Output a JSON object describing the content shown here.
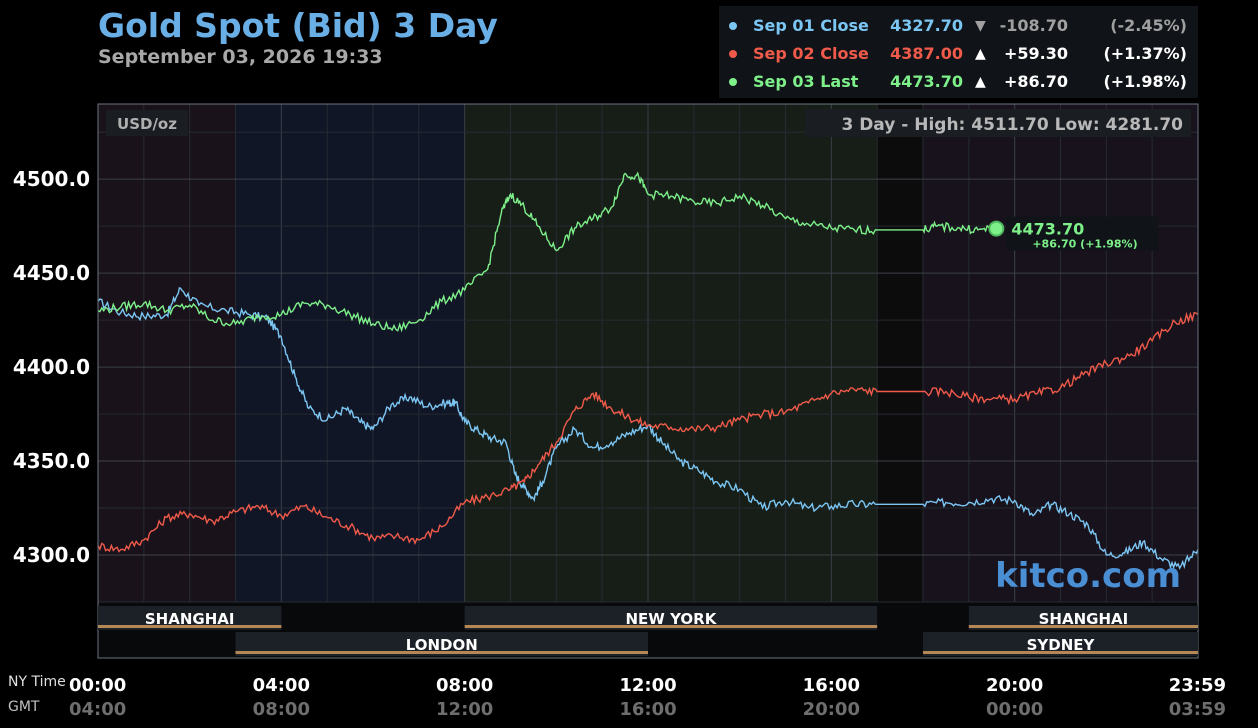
{
  "header": {
    "title": "Gold Spot (Bid) 3 Day",
    "subtitle": "September 03, 2026 19:33"
  },
  "legend": [
    {
      "name": "Sep 01 Close",
      "price": "4327.70",
      "arrow": "▼",
      "change": "-108.70",
      "pct": "(-2.45%)",
      "color": "#7cc6f4",
      "arrow_color": "#a0a0a0",
      "change_color": "#a0a0a0"
    },
    {
      "name": "Sep 02 Close",
      "price": "4387.00",
      "arrow": "▲",
      "change": "+59.30",
      "pct": "(+1.37%)",
      "color": "#ef5a4a",
      "arrow_color": "#ffffff",
      "change_color": "#ffffff"
    },
    {
      "name": "Sep 03 Last",
      "price": "4473.70",
      "arrow": "▲",
      "change": "+86.70",
      "pct": "(+1.98%)",
      "color": "#7ef08a",
      "arrow_color": "#ffffff",
      "change_color": "#ffffff"
    }
  ],
  "chart": {
    "unit": "USD/oz",
    "high_low": "3 Day - High: 4511.70  Low: 4281.70",
    "last_price": "4473.70",
    "last_change": "+86.70 (+1.98%)",
    "watermark": "kitco.com",
    "row_label_ny": "NY Time",
    "row_label_gmt": "GMT"
  },
  "chart_data": {
    "type": "line",
    "ylim": [
      4275,
      4540
    ],
    "xlim": [
      0,
      24
    ],
    "yticks": [
      {
        "value": 4300,
        "label": "4300.0"
      },
      {
        "value": 4350,
        "label": "4350.0"
      },
      {
        "value": 4400,
        "label": "4400.0"
      },
      {
        "value": 4450,
        "label": "4450.0"
      },
      {
        "value": 4500,
        "label": "4500.0"
      }
    ],
    "xticks": [
      {
        "value": 0,
        "label": "00:00",
        "gmt": "04:00"
      },
      {
        "value": 4,
        "label": "04:00",
        "gmt": "08:00"
      },
      {
        "value": 8,
        "label": "08:00",
        "gmt": "12:00"
      },
      {
        "value": 12,
        "label": "12:00",
        "gmt": "16:00"
      },
      {
        "value": 16,
        "label": "16:00",
        "gmt": "20:00"
      },
      {
        "value": 20,
        "label": "20:00",
        "gmt": "00:00"
      },
      {
        "value": 23.98,
        "label": "23:59",
        "gmt": "03:59"
      }
    ],
    "sessions": [
      {
        "name": "SHANGHAI",
        "start": 0,
        "end": 4,
        "row": 1
      },
      {
        "name": "NEW YORK",
        "start": 8,
        "end": 17,
        "row": 1
      },
      {
        "name": "SHANGHAI",
        "start": 19,
        "end": 24,
        "row": 1
      },
      {
        "name": "LONDON",
        "start": 3,
        "end": 12,
        "row": 2
      },
      {
        "name": "SYDNEY",
        "start": 18,
        "end": 24,
        "row": 2
      }
    ],
    "series": [
      {
        "name": "Sep 01 Close",
        "color": "#7cc6f4",
        "points": [
          [
            0,
            4435
          ],
          [
            0.5,
            4429
          ],
          [
            1,
            4427
          ],
          [
            1.5,
            4428
          ],
          [
            1.8,
            4442
          ],
          [
            2.2,
            4433
          ],
          [
            2.8,
            4430
          ],
          [
            3.3,
            4428
          ],
          [
            3.7,
            4426
          ],
          [
            4.0,
            4416
          ],
          [
            4.3,
            4395
          ],
          [
            4.6,
            4378
          ],
          [
            5.0,
            4372
          ],
          [
            5.4,
            4378
          ],
          [
            5.7,
            4371
          ],
          [
            6.0,
            4367
          ],
          [
            6.4,
            4380
          ],
          [
            6.8,
            4384
          ],
          [
            7.2,
            4379
          ],
          [
            7.6,
            4381
          ],
          [
            7.8,
            4381
          ],
          [
            8.0,
            4371
          ],
          [
            8.3,
            4366
          ],
          [
            8.6,
            4362
          ],
          [
            8.9,
            4360
          ],
          [
            9.1,
            4343
          ],
          [
            9.3,
            4336
          ],
          [
            9.5,
            4330
          ],
          [
            9.7,
            4339
          ],
          [
            10.0,
            4357
          ],
          [
            10.4,
            4367
          ],
          [
            10.8,
            4357
          ],
          [
            11.2,
            4360
          ],
          [
            11.6,
            4365
          ],
          [
            12.0,
            4369
          ],
          [
            12.3,
            4360
          ],
          [
            12.7,
            4350
          ],
          [
            13.1,
            4345
          ],
          [
            13.5,
            4339
          ],
          [
            14.0,
            4335
          ],
          [
            14.5,
            4325
          ],
          [
            15.0,
            4329
          ],
          [
            15.5,
            4325
          ],
          [
            16.0,
            4326
          ],
          [
            16.5,
            4327
          ],
          [
            17.0,
            4327
          ],
          [
            18.0,
            4327
          ],
          [
            18.5,
            4328
          ],
          [
            19.0,
            4328
          ],
          [
            19.5,
            4330
          ],
          [
            20.0,
            4329
          ],
          [
            20.4,
            4321
          ],
          [
            20.8,
            4327
          ],
          [
            21.2,
            4322
          ],
          [
            21.6,
            4316
          ],
          [
            22.0,
            4300
          ],
          [
            22.4,
            4301
          ],
          [
            22.8,
            4307
          ],
          [
            23.2,
            4298
          ],
          [
            23.6,
            4293
          ],
          [
            24.0,
            4303
          ]
        ]
      },
      {
        "name": "Sep 02 Close",
        "color": "#ef5a4a",
        "points": [
          [
            0,
            4305
          ],
          [
            0.5,
            4303
          ],
          [
            1,
            4308
          ],
          [
            1.5,
            4320
          ],
          [
            2.0,
            4322
          ],
          [
            2.5,
            4318
          ],
          [
            3.0,
            4323
          ],
          [
            3.5,
            4326
          ],
          [
            4.0,
            4321
          ],
          [
            4.5,
            4326
          ],
          [
            5.0,
            4320
          ],
          [
            5.5,
            4315
          ],
          [
            6.0,
            4309
          ],
          [
            6.5,
            4310
          ],
          [
            7.0,
            4308
          ],
          [
            7.5,
            4315
          ],
          [
            8.0,
            4328
          ],
          [
            8.5,
            4331
          ],
          [
            9.0,
            4335
          ],
          [
            9.3,
            4339
          ],
          [
            9.6,
            4348
          ],
          [
            10.0,
            4360
          ],
          [
            10.4,
            4377
          ],
          [
            10.8,
            4386
          ],
          [
            11.2,
            4378
          ],
          [
            11.6,
            4373
          ],
          [
            12.0,
            4369
          ],
          [
            12.5,
            4368
          ],
          [
            13.0,
            4367
          ],
          [
            13.5,
            4368
          ],
          [
            14.0,
            4372
          ],
          [
            14.5,
            4375
          ],
          [
            15.0,
            4376
          ],
          [
            15.5,
            4381
          ],
          [
            16.0,
            4386
          ],
          [
            16.5,
            4388
          ],
          [
            17.0,
            4387
          ],
          [
            18.0,
            4387
          ],
          [
            18.5,
            4387
          ],
          [
            19.0,
            4384
          ],
          [
            19.5,
            4383
          ],
          [
            20.0,
            4383
          ],
          [
            20.5,
            4386
          ],
          [
            21.0,
            4389
          ],
          [
            21.5,
            4396
          ],
          [
            22.0,
            4402
          ],
          [
            22.5,
            4406
          ],
          [
            23.0,
            4414
          ],
          [
            23.5,
            4424
          ],
          [
            24.0,
            4428
          ]
        ]
      },
      {
        "name": "Sep 03 Last",
        "color": "#7ef08a",
        "points": [
          [
            0,
            4430
          ],
          [
            0.5,
            4432
          ],
          [
            1,
            4434
          ],
          [
            1.5,
            4430
          ],
          [
            2.0,
            4433
          ],
          [
            2.5,
            4425
          ],
          [
            3.0,
            4423
          ],
          [
            3.5,
            4427
          ],
          [
            4.0,
            4428
          ],
          [
            4.5,
            4434
          ],
          [
            5.0,
            4433
          ],
          [
            5.5,
            4428
          ],
          [
            6.0,
            4423
          ],
          [
            6.5,
            4420
          ],
          [
            7.0,
            4425
          ],
          [
            7.5,
            4435
          ],
          [
            8.0,
            4441
          ],
          [
            8.5,
            4452
          ],
          [
            8.8,
            4482
          ],
          [
            9.0,
            4492
          ],
          [
            9.3,
            4485
          ],
          [
            9.6,
            4475
          ],
          [
            10.0,
            4462
          ],
          [
            10.4,
            4474
          ],
          [
            10.8,
            4479
          ],
          [
            11.2,
            4485
          ],
          [
            11.5,
            4503
          ],
          [
            11.8,
            4501
          ],
          [
            12.0,
            4492
          ],
          [
            12.5,
            4491
          ],
          [
            13.0,
            4488
          ],
          [
            13.5,
            4487
          ],
          [
            14.0,
            4491
          ],
          [
            14.5,
            4486
          ],
          [
            15.0,
            4479
          ],
          [
            15.5,
            4476
          ],
          [
            16.0,
            4474
          ],
          [
            16.5,
            4473
          ],
          [
            17.0,
            4473
          ],
          [
            18.0,
            4473
          ],
          [
            18.3,
            4475
          ],
          [
            18.8,
            4474
          ],
          [
            19.2,
            4473
          ],
          [
            19.6,
            4473.7
          ]
        ]
      }
    ]
  }
}
